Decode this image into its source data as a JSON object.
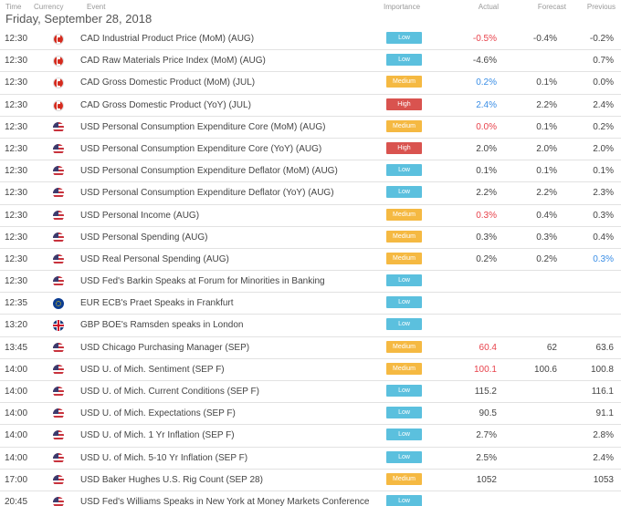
{
  "colors": {
    "low": "#5bc0de",
    "medium": "#f5b942",
    "high": "#d9534f",
    "negative": "#e8424b",
    "positive": "#3a8ee6"
  },
  "headers": {
    "time": "Time",
    "currency": "Currency",
    "event": "Event",
    "importance": "Importance",
    "actual": "Actual",
    "forecast": "Forecast",
    "previous": "Previous"
  },
  "date": "Friday, September 28, 2018",
  "events": [
    {
      "time": "12:30",
      "currency": "CAD",
      "event": "CAD Industrial Product Price (MoM) (AUG)",
      "importance": "Low",
      "actual": "-0.5%",
      "actual_tone": "neg",
      "forecast": "-0.4%",
      "previous": "-0.2%",
      "previous_tone": "neu"
    },
    {
      "time": "12:30",
      "currency": "CAD",
      "event": "CAD Raw Materials Price Index (MoM) (AUG)",
      "importance": "Low",
      "actual": "-4.6%",
      "actual_tone": "neu",
      "forecast": "",
      "previous": "0.7%",
      "previous_tone": "neu"
    },
    {
      "time": "12:30",
      "currency": "CAD",
      "event": "CAD Gross Domestic Product (MoM) (JUL)",
      "importance": "Medium",
      "actual": "0.2%",
      "actual_tone": "pos",
      "forecast": "0.1%",
      "previous": "0.0%",
      "previous_tone": "neu"
    },
    {
      "time": "12:30",
      "currency": "CAD",
      "event": "CAD Gross Domestic Product (YoY) (JUL)",
      "importance": "High",
      "actual": "2.4%",
      "actual_tone": "pos",
      "forecast": "2.2%",
      "previous": "2.4%",
      "previous_tone": "neu"
    },
    {
      "time": "12:30",
      "currency": "USD",
      "event": "USD Personal Consumption Expenditure Core (MoM) (AUG)",
      "importance": "Medium",
      "actual": "0.0%",
      "actual_tone": "neg",
      "forecast": "0.1%",
      "previous": "0.2%",
      "previous_tone": "neu"
    },
    {
      "time": "12:30",
      "currency": "USD",
      "event": "USD Personal Consumption Expenditure Core (YoY) (AUG)",
      "importance": "High",
      "actual": "2.0%",
      "actual_tone": "neu",
      "forecast": "2.0%",
      "previous": "2.0%",
      "previous_tone": "neu"
    },
    {
      "time": "12:30",
      "currency": "USD",
      "event": "USD Personal Consumption Expenditure Deflator (MoM) (AUG)",
      "importance": "Low",
      "actual": "0.1%",
      "actual_tone": "neu",
      "forecast": "0.1%",
      "previous": "0.1%",
      "previous_tone": "neu"
    },
    {
      "time": "12:30",
      "currency": "USD",
      "event": "USD Personal Consumption Expenditure Deflator (YoY) (AUG)",
      "importance": "Low",
      "actual": "2.2%",
      "actual_tone": "neu",
      "forecast": "2.2%",
      "previous": "2.3%",
      "previous_tone": "neu"
    },
    {
      "time": "12:30",
      "currency": "USD",
      "event": "USD Personal Income (AUG)",
      "importance": "Medium",
      "actual": "0.3%",
      "actual_tone": "neg",
      "forecast": "0.4%",
      "previous": "0.3%",
      "previous_tone": "neu"
    },
    {
      "time": "12:30",
      "currency": "USD",
      "event": "USD Personal Spending (AUG)",
      "importance": "Medium",
      "actual": "0.3%",
      "actual_tone": "neu",
      "forecast": "0.3%",
      "previous": "0.4%",
      "previous_tone": "neu"
    },
    {
      "time": "12:30",
      "currency": "USD",
      "event": "USD Real Personal Spending (AUG)",
      "importance": "Medium",
      "actual": "0.2%",
      "actual_tone": "neu",
      "forecast": "0.2%",
      "previous": "0.3%",
      "previous_tone": "pos"
    },
    {
      "time": "12:30",
      "currency": "USD",
      "event": "USD Fed's Barkin Speaks at Forum for Minorities in Banking",
      "importance": "Low",
      "actual": "",
      "actual_tone": "neu",
      "forecast": "",
      "previous": "",
      "previous_tone": "neu"
    },
    {
      "time": "12:35",
      "currency": "EUR",
      "event": "EUR ECB's Praet Speaks in Frankfurt",
      "importance": "Low",
      "actual": "",
      "actual_tone": "neu",
      "forecast": "",
      "previous": "",
      "previous_tone": "neu"
    },
    {
      "time": "13:20",
      "currency": "GBP",
      "event": "GBP BOE's Ramsden speaks in London",
      "importance": "Low",
      "actual": "",
      "actual_tone": "neu",
      "forecast": "",
      "previous": "",
      "previous_tone": "neu"
    },
    {
      "time": "13:45",
      "currency": "USD",
      "event": "USD Chicago Purchasing Manager (SEP)",
      "importance": "Medium",
      "actual": "60.4",
      "actual_tone": "neg",
      "forecast": "62",
      "previous": "63.6",
      "previous_tone": "neu"
    },
    {
      "time": "14:00",
      "currency": "USD",
      "event": "USD U. of Mich. Sentiment (SEP F)",
      "importance": "Medium",
      "actual": "100.1",
      "actual_tone": "neg",
      "forecast": "100.6",
      "previous": "100.8",
      "previous_tone": "neu"
    },
    {
      "time": "14:00",
      "currency": "USD",
      "event": "USD U. of Mich. Current Conditions (SEP F)",
      "importance": "Low",
      "actual": "115.2",
      "actual_tone": "neu",
      "forecast": "",
      "previous": "116.1",
      "previous_tone": "neu"
    },
    {
      "time": "14:00",
      "currency": "USD",
      "event": "USD U. of Mich. Expectations (SEP F)",
      "importance": "Low",
      "actual": "90.5",
      "actual_tone": "neu",
      "forecast": "",
      "previous": "91.1",
      "previous_tone": "neu"
    },
    {
      "time": "14:00",
      "currency": "USD",
      "event": "USD U. of Mich. 1 Yr Inflation (SEP F)",
      "importance": "Low",
      "actual": "2.7%",
      "actual_tone": "neu",
      "forecast": "",
      "previous": "2.8%",
      "previous_tone": "neu"
    },
    {
      "time": "14:00",
      "currency": "USD",
      "event": "USD U. of Mich. 5-10 Yr Inflation (SEP F)",
      "importance": "Low",
      "actual": "2.5%",
      "actual_tone": "neu",
      "forecast": "",
      "previous": "2.4%",
      "previous_tone": "neu"
    },
    {
      "time": "17:00",
      "currency": "USD",
      "event": "USD Baker Hughes U.S. Rig Count (SEP 28)",
      "importance": "Medium",
      "actual": "1052",
      "actual_tone": "neu",
      "forecast": "",
      "previous": "1053",
      "previous_tone": "neu"
    },
    {
      "time": "20:45",
      "currency": "USD",
      "event": "USD Fed's Williams Speaks in New York at Money Markets Conference",
      "importance": "Low",
      "actual": "",
      "actual_tone": "neu",
      "forecast": "",
      "previous": "",
      "previous_tone": "neu"
    }
  ]
}
